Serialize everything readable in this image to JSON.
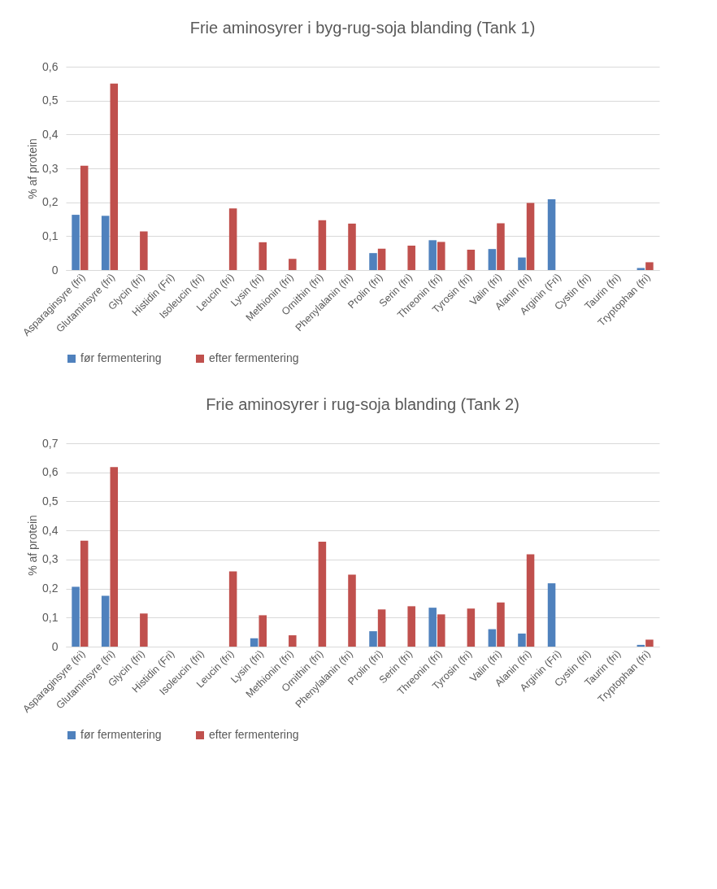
{
  "chart_data": [
    {
      "type": "bar",
      "title": "Frie aminosyrer i byg-rug-soja blanding (Tank 1)",
      "ylabel": "% af protein",
      "categories": [
        "Asparaginsyre (fri)",
        "Glutaminsyre (fri)",
        "Glycin (fri)",
        "Histidin (Fri)",
        "Isoleucin (fri)",
        "Leucin (fri)",
        "Lysin (fri)",
        "Methionin (fri)",
        "Ornithin (fri)",
        "Phenylalanin (fri)",
        "Prolin (fri)",
        "Serin (fri)",
        "Threonin (fri)",
        "Tyrosin (fri)",
        "Valin (fri)",
        "Alanin (fri)",
        "Arginin (Fri)",
        "Cystin (fri)",
        "Taurin (fri)",
        "Tryptophan (fri)"
      ],
      "series": [
        {
          "name": "før fermentering",
          "color": "#4f81bd",
          "values": [
            0.163,
            0.16,
            null,
            null,
            null,
            null,
            null,
            null,
            null,
            null,
            0.05,
            null,
            0.088,
            null,
            0.062,
            0.037,
            0.209,
            null,
            null,
            0.006
          ]
        },
        {
          "name": "efter fermentering",
          "color": "#c0504d",
          "values": [
            0.308,
            0.55,
            0.114,
            null,
            null,
            0.182,
            0.082,
            0.033,
            0.147,
            0.137,
            0.063,
            0.072,
            0.083,
            0.06,
            0.138,
            0.198,
            null,
            null,
            null,
            0.023
          ]
        }
      ],
      "ylim": [
        0,
        0.6
      ],
      "yticks": [
        0,
        {
          "value": 0.1,
          "label": "0,1"
        },
        {
          "value": 0.2,
          "label": "0,2"
        },
        {
          "value": 0.3,
          "label": "0,3"
        },
        {
          "value": 0.4,
          "label": "0,4"
        },
        {
          "value": 0.5,
          "label": "0,5"
        },
        {
          "value": 0.6,
          "label": "0,6"
        }
      ],
      "grid": "y",
      "legend": "bottom"
    },
    {
      "type": "bar",
      "title": "Frie aminosyrer i rug-soja blanding (Tank 2)",
      "ylabel": "% af protein",
      "categories": [
        "Asparaginsyre (fri)",
        "Glutaminsyre (fri)",
        "Glycin (fri)",
        "Histidin (Fri)",
        "Isoleucin (fri)",
        "Leucin (fri)",
        "Lysin (fri)",
        "Methionin (fri)",
        "Ornithin (fri)",
        "Phenylalanin (fri)",
        "Prolin (fri)",
        "Serin (fri)",
        "Threonin (fri)",
        "Tyrosin (fri)",
        "Valin (fri)",
        "Alanin (fri)",
        "Arginin (Fri)",
        "Cystin (fri)",
        "Taurin (fri)",
        "Tryptophan (fri)"
      ],
      "series": [
        {
          "name": "før fermentering",
          "color": "#4f81bd",
          "values": [
            0.206,
            0.175,
            null,
            null,
            null,
            null,
            0.029,
            null,
            null,
            null,
            0.053,
            null,
            0.134,
            null,
            0.06,
            0.045,
            0.218,
            null,
            null,
            0.006
          ]
        },
        {
          "name": "efter fermentering",
          "color": "#c0504d",
          "values": [
            0.365,
            0.618,
            0.114,
            null,
            null,
            0.259,
            0.108,
            0.039,
            0.361,
            0.248,
            0.128,
            0.139,
            0.111,
            0.131,
            0.152,
            0.318,
            null,
            null,
            null,
            0.024
          ]
        }
      ],
      "ylim": [
        0,
        0.7
      ],
      "yticks": [
        0,
        {
          "value": 0.1,
          "label": "0,1"
        },
        {
          "value": 0.2,
          "label": "0,2"
        },
        {
          "value": 0.3,
          "label": "0,3"
        },
        {
          "value": 0.4,
          "label": "0,4"
        },
        {
          "value": 0.5,
          "label": "0,5"
        },
        {
          "value": 0.6,
          "label": "0,6"
        },
        {
          "value": 0.7,
          "label": "0,7"
        }
      ],
      "grid": "y",
      "legend": "bottom"
    }
  ]
}
